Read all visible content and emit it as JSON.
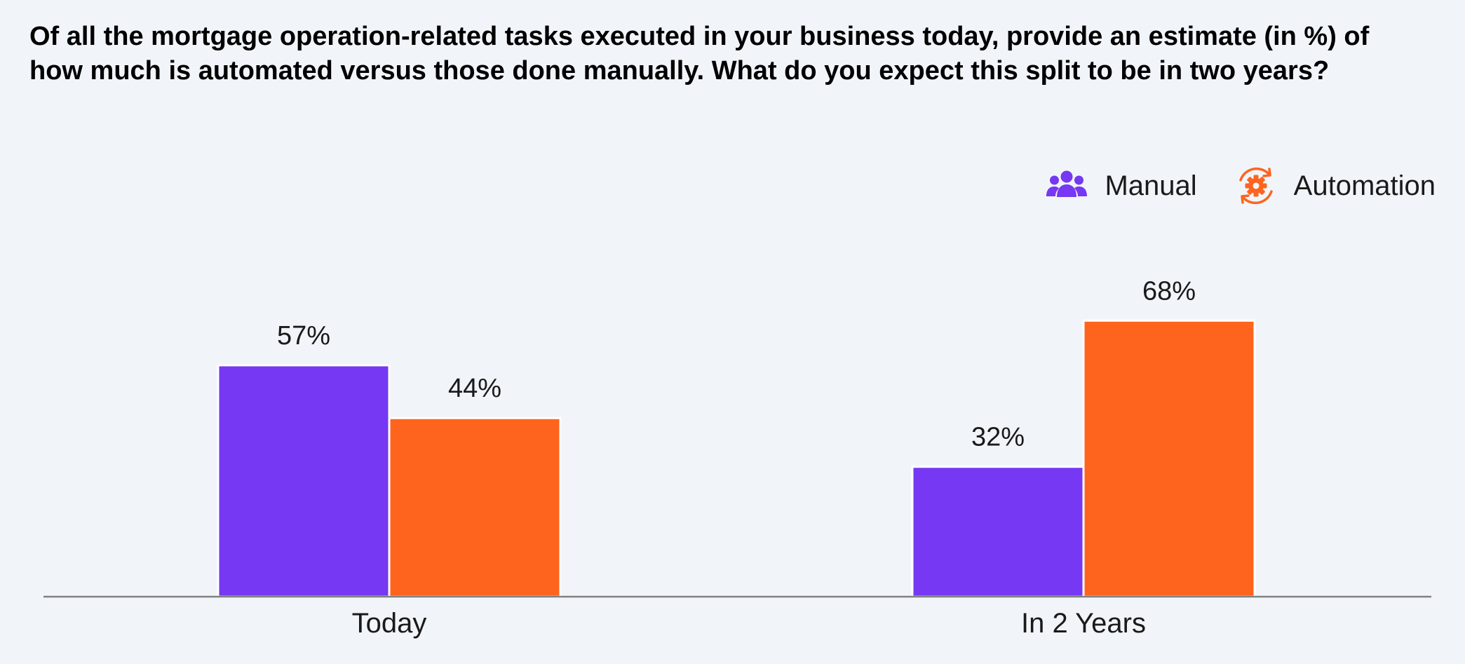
{
  "chart_data": {
    "type": "bar",
    "title": "Of all the mortgage operation-related tasks executed in your business today, provide an estimate (in %) of how much is automated versus those done manually. What do you expect this split to be in two years?",
    "xlabel": "",
    "ylabel": "",
    "categories": [
      "Today",
      "In 2 Years"
    ],
    "series": [
      {
        "name": "Manual",
        "values": [
          57,
          32
        ],
        "labels": [
          "57%",
          "32%"
        ],
        "color": "#7638f2",
        "icon": "people-icon"
      },
      {
        "name": "Automation",
        "values": [
          44,
          68
        ],
        "labels": [
          "44%",
          "68%"
        ],
        "color": "#ff641e",
        "icon": "gear-refresh-icon"
      }
    ],
    "ylim": [
      0,
      100
    ],
    "grid": false,
    "legend_position": "top-right",
    "value_format": "percent"
  },
  "colors": {
    "background": "#f1f5f9",
    "axis": "#808080",
    "manual": "#7638f2",
    "automation": "#ff641e"
  }
}
